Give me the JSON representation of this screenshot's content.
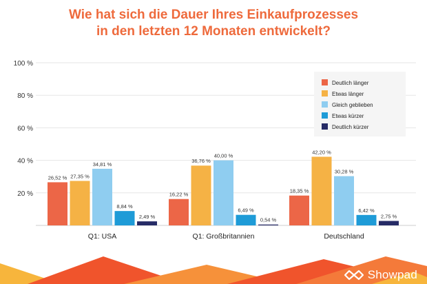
{
  "title_lines": [
    "Wie hat sich die Dauer Ihres Einkaufprozesses",
    "in den letzten 12 Monaten entwickelt?"
  ],
  "brand": "Showpad",
  "colors": {
    "title": "#ee6a3c",
    "deutlich_laenger": "#ec6647",
    "etwas_laenger": "#f5b245",
    "gleich_geblieben": "#8fcdf0",
    "etwas_kuerzer": "#1e9bd7",
    "deutlich_kuerzer": "#262b66",
    "footer_red": "#f0542c",
    "footer_orange": "#f6913a",
    "footer_yellow": "#f7b53c"
  },
  "chart_data": {
    "type": "bar",
    "categories": [
      "Q1: USA",
      "Q1: Großbritannien",
      "Deutschland"
    ],
    "series": [
      {
        "name": "Deutlich länger",
        "values": [
          26.52,
          16.22,
          18.35
        ],
        "labels": [
          "26,52 %",
          "16,22 %",
          "18,35 %"
        ],
        "color": "#ec6647"
      },
      {
        "name": "Etwas länger",
        "values": [
          27.35,
          36.76,
          42.2
        ],
        "labels": [
          "27,35 %",
          "36,76 %",
          "42,20 %"
        ],
        "color": "#f5b245"
      },
      {
        "name": "Gleich geblieben",
        "values": [
          34.81,
          40.0,
          30.28
        ],
        "labels": [
          "34,81 %",
          "40,00 %",
          "30,28 %"
        ],
        "color": "#8fcdf0"
      },
      {
        "name": "Etwas kürzer",
        "values": [
          8.84,
          6.49,
          6.42
        ],
        "labels": [
          "8,84 %",
          "6,49 %",
          "6,42 %"
        ],
        "color": "#1e9bd7"
      },
      {
        "name": "Deutlich kürzer",
        "values": [
          2.49,
          0.54,
          2.75
        ],
        "labels": [
          "2,49 %",
          "0,54 %",
          "2,75 %"
        ],
        "color": "#262b66"
      }
    ],
    "yticks": [
      20,
      40,
      60,
      80,
      100
    ],
    "ytick_labels": [
      "20 %",
      "40 %",
      "60 %",
      "80 %",
      "100 %"
    ],
    "ylim": [
      0,
      100
    ],
    "grid": true,
    "legend": "top-right"
  }
}
